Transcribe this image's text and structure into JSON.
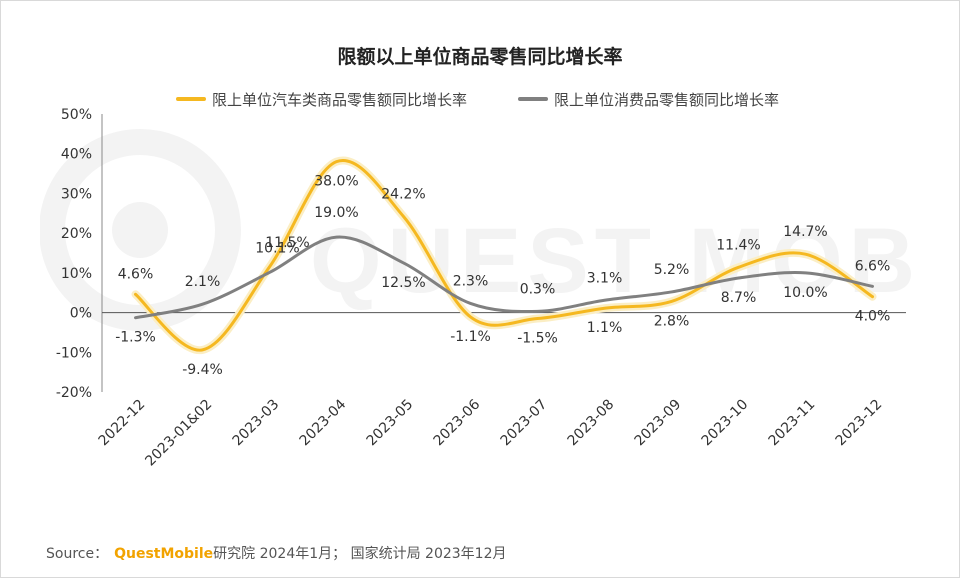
{
  "chart_data": {
    "type": "line",
    "title": "限额以上单位商品零售同比增长率",
    "categories": [
      "2022-12",
      "2023-01&02",
      "2023-03",
      "2023-04",
      "2023-05",
      "2023-06",
      "2023-07",
      "2023-08",
      "2023-09",
      "2023-10",
      "2023-11",
      "2023-12"
    ],
    "series": [
      {
        "name": "限上单位汽车类商品零售额同比增长率",
        "color": "#f5b820",
        "values": [
          4.6,
          -9.4,
          11.5,
          38.0,
          24.2,
          -1.1,
          -1.5,
          1.1,
          2.8,
          11.4,
          14.7,
          4.0
        ],
        "labels": [
          "4.6%",
          "-9.4%",
          "11.5%",
          "38.0%",
          "24.2%",
          "-1.1%",
          "-1.5%",
          "1.1%",
          "2.8%",
          "11.4%",
          "14.7%",
          "4.0%"
        ]
      },
      {
        "name": "限上单位消费品零售额同比增长率",
        "color": "#808080",
        "values": [
          -1.3,
          2.1,
          10.1,
          19.0,
          12.5,
          2.3,
          0.3,
          3.1,
          5.2,
          8.7,
          10.0,
          6.6
        ],
        "labels": [
          "-1.3%",
          "2.1%",
          "10.1%",
          "19.0%",
          "12.5%",
          "2.3%",
          "0.3%",
          "3.1%",
          "5.2%",
          "8.7%",
          "10.0%",
          "6.6%"
        ]
      }
    ],
    "ylim": [
      -20,
      50
    ],
    "yticks": [
      50,
      40,
      30,
      20,
      10,
      0,
      -10,
      -20
    ],
    "ytick_labels": [
      "50%",
      "40%",
      "30%",
      "20%",
      "10%",
      "0%",
      "-10%",
      "-20%"
    ],
    "grid": false,
    "legend_position": "top"
  },
  "watermark": "QUEST MOBILE",
  "source": {
    "prefix": "Source：",
    "brand": "QuestMobile",
    "text": "研究院 2024年1月； 国家统计局 2023年12月"
  }
}
